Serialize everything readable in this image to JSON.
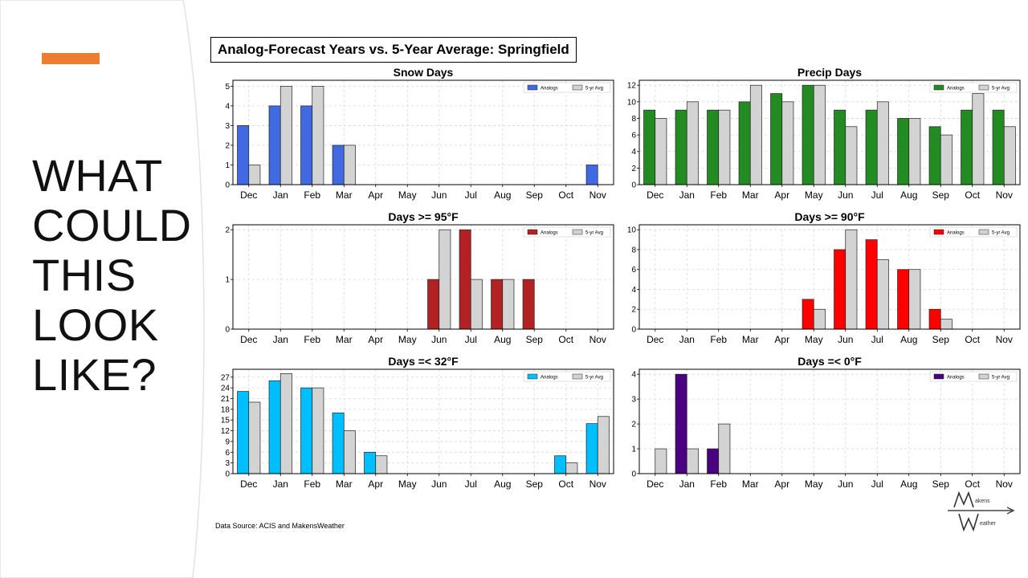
{
  "slide": {
    "headline": "WHAT\nCOULD\nTHIS\nLOOK\nLIKE?",
    "title": "Analog-Forecast Years vs. 5-Year Average: Springfield",
    "source": "Data Source: ACIS and MakensWeather",
    "logo_text_top": "akens",
    "logo_text_bottom": "eather",
    "accent_color": "#ed7d31"
  },
  "chart_data": [
    {
      "type": "bar",
      "title": "Snow Days",
      "categories": [
        "Dec",
        "Jan",
        "Feb",
        "Mar",
        "Apr",
        "May",
        "Jun",
        "Jul",
        "Aug",
        "Sep",
        "Oct",
        "Nov"
      ],
      "yticks": [
        0,
        1,
        2,
        3,
        4,
        5
      ],
      "ylim": [
        0,
        5.3
      ],
      "legend_position": "top-right",
      "series": [
        {
          "name": "Analogs",
          "color": "#4169e1",
          "values": [
            3,
            4,
            4,
            2,
            0,
            0,
            0,
            0,
            0,
            0,
            0,
            1
          ]
        },
        {
          "name": "5-yr Avg",
          "color": "#d3d3d3",
          "values": [
            1,
            5,
            5,
            2,
            0,
            0,
            0,
            0,
            0,
            0,
            0,
            0
          ]
        }
      ]
    },
    {
      "type": "bar",
      "title": "Precip Days",
      "categories": [
        "Dec",
        "Jan",
        "Feb",
        "Mar",
        "Apr",
        "May",
        "Jun",
        "Jul",
        "Aug",
        "Sep",
        "Oct",
        "Nov"
      ],
      "yticks": [
        0,
        2,
        4,
        6,
        8,
        10,
        12
      ],
      "ylim": [
        0,
        12.6
      ],
      "legend_position": "top-right",
      "series": [
        {
          "name": "Analogs",
          "color": "#228b22",
          "values": [
            9,
            9,
            9,
            10,
            11,
            12,
            9,
            9,
            8,
            7,
            9,
            9
          ]
        },
        {
          "name": "5-yr Avg",
          "color": "#d3d3d3",
          "values": [
            8,
            10,
            9,
            12,
            10,
            12,
            7,
            10,
            8,
            6,
            11,
            7
          ]
        }
      ]
    },
    {
      "type": "bar",
      "title": "Days >= 95°F",
      "categories": [
        "Dec",
        "Jan",
        "Feb",
        "Mar",
        "Apr",
        "May",
        "Jun",
        "Jul",
        "Aug",
        "Sep",
        "Oct",
        "Nov"
      ],
      "yticks": [
        0,
        1,
        2
      ],
      "ylim": [
        0,
        2.1
      ],
      "legend_position": "top-right",
      "series": [
        {
          "name": "Analogs",
          "color": "#b22222",
          "values": [
            0,
            0,
            0,
            0,
            0,
            0,
            1,
            2,
            1,
            1,
            0,
            0
          ]
        },
        {
          "name": "5-yr Avg",
          "color": "#d3d3d3",
          "values": [
            0,
            0,
            0,
            0,
            0,
            0,
            2,
            1,
            1,
            0,
            0,
            0
          ]
        }
      ]
    },
    {
      "type": "bar",
      "title": "Days >= 90°F",
      "categories": [
        "Dec",
        "Jan",
        "Feb",
        "Mar",
        "Apr",
        "May",
        "Jun",
        "Jul",
        "Aug",
        "Sep",
        "Oct",
        "Nov"
      ],
      "yticks": [
        0,
        2,
        4,
        6,
        8,
        10
      ],
      "ylim": [
        0,
        10.5
      ],
      "legend_position": "top-right",
      "series": [
        {
          "name": "Analogs",
          "color": "#ff0000",
          "values": [
            0,
            0,
            0,
            0,
            0,
            3,
            8,
            9,
            6,
            2,
            0,
            0
          ]
        },
        {
          "name": "5-yr Avg",
          "color": "#d3d3d3",
          "values": [
            0,
            0,
            0,
            0,
            0,
            2,
            10,
            7,
            6,
            1,
            0,
            0
          ]
        }
      ]
    },
    {
      "type": "bar",
      "title": "Days =< 32°F",
      "categories": [
        "Dec",
        "Jan",
        "Feb",
        "Mar",
        "Apr",
        "May",
        "Jun",
        "Jul",
        "Aug",
        "Sep",
        "Oct",
        "Nov"
      ],
      "yticks": [
        0,
        3,
        6,
        9,
        12,
        15,
        18,
        21,
        24,
        27
      ],
      "ylim": [
        0,
        29.2
      ],
      "legend_position": "top-right",
      "series": [
        {
          "name": "Analogs",
          "color": "#00bfff",
          "values": [
            23,
            26,
            24,
            17,
            6,
            0,
            0,
            0,
            0,
            0,
            5,
            14
          ]
        },
        {
          "name": "5-yr Avg",
          "color": "#d3d3d3",
          "values": [
            20,
            28,
            24,
            12,
            5,
            0,
            0,
            0,
            0,
            0,
            3,
            16
          ]
        }
      ]
    },
    {
      "type": "bar",
      "title": "Days =< 0°F",
      "categories": [
        "Dec",
        "Jan",
        "Feb",
        "Mar",
        "Apr",
        "May",
        "Jun",
        "Jul",
        "Aug",
        "Sep",
        "Oct",
        "Nov"
      ],
      "yticks": [
        0,
        1,
        2,
        3,
        4
      ],
      "ylim": [
        0,
        4.2
      ],
      "legend_position": "top-right",
      "series": [
        {
          "name": "Analogs",
          "color": "#4b0082",
          "values": [
            0,
            4,
            1,
            0,
            0,
            0,
            0,
            0,
            0,
            0,
            0,
            0
          ]
        },
        {
          "name": "5-yr Avg",
          "color": "#d3d3d3",
          "values": [
            1,
            1,
            2,
            0,
            0,
            0,
            0,
            0,
            0,
            0,
            0,
            0
          ]
        }
      ]
    }
  ]
}
